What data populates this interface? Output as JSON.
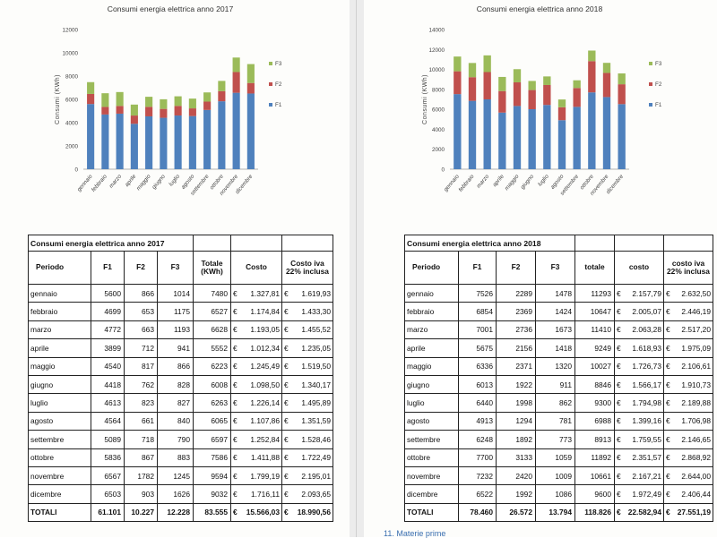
{
  "left": {
    "chart_data": {
      "type": "bar",
      "stacked": true,
      "title": "Consumi energia elettrica anno 2017",
      "ylabel": "Consumi (KWh)",
      "xlabel": "",
      "ylim": [
        0,
        12000
      ],
      "yticks": [
        0,
        2000,
        4000,
        6000,
        8000,
        10000,
        12000
      ],
      "categories": [
        "gennaio",
        "febbraio",
        "marzo",
        "aprile",
        "maggio",
        "giugno",
        "luglio",
        "agosto",
        "settembre",
        "ottobre",
        "novembre",
        "dicembre"
      ],
      "series": [
        {
          "name": "F1",
          "color": "#4f81bd",
          "values": [
            5600,
            4699,
            4772,
            3899,
            4540,
            4418,
            4613,
            4564,
            5089,
            5836,
            6567,
            6503
          ]
        },
        {
          "name": "F2",
          "color": "#c0504d",
          "values": [
            866,
            653,
            663,
            712,
            817,
            762,
            823,
            661,
            718,
            867,
            1782,
            903
          ]
        },
        {
          "name": "F3",
          "color": "#9bbb59",
          "values": [
            1014,
            1175,
            1193,
            941,
            866,
            828,
            827,
            840,
            790,
            883,
            1245,
            1626
          ]
        }
      ],
      "legend": "right",
      "grid": false
    },
    "table": {
      "title": "Consumi energia elettrica anno 2017",
      "headers": [
        "Periodo",
        "F1",
        "F2",
        "F3",
        "Totale (KWh)",
        "Costo",
        "Costo iva 22% inclusa"
      ],
      "currency": "€",
      "rows": [
        {
          "periodo": "gennaio",
          "f1": "5600",
          "f2": "866",
          "f3": "1014",
          "totale": "7480",
          "costo": "1.327,81",
          "iva": "1.619,93"
        },
        {
          "periodo": "febbraio",
          "f1": "4699",
          "f2": "653",
          "f3": "1175",
          "totale": "6527",
          "costo": "1.174,84",
          "iva": "1.433,30"
        },
        {
          "periodo": "marzo",
          "f1": "4772",
          "f2": "663",
          "f3": "1193",
          "totale": "6628",
          "costo": "1.193,05",
          "iva": "1.455,52"
        },
        {
          "periodo": "aprile",
          "f1": "3899",
          "f2": "712",
          "f3": "941",
          "totale": "5552",
          "costo": "1.012,34",
          "iva": "1.235,05"
        },
        {
          "periodo": "maggio",
          "f1": "4540",
          "f2": "817",
          "f3": "866",
          "totale": "6223",
          "costo": "1.245,49",
          "iva": "1.519,50"
        },
        {
          "periodo": "giugno",
          "f1": "4418",
          "f2": "762",
          "f3": "828",
          "totale": "6008",
          "costo": "1.098,50",
          "iva": "1.340,17"
        },
        {
          "periodo": "luglio",
          "f1": "4613",
          "f2": "823",
          "f3": "827",
          "totale": "6263",
          "costo": "1.226,14",
          "iva": "1.495,89"
        },
        {
          "periodo": "agosto",
          "f1": "4564",
          "f2": "661",
          "f3": "840",
          "totale": "6065",
          "costo": "1.107,86",
          "iva": "1.351,59"
        },
        {
          "periodo": "settembre",
          "f1": "5089",
          "f2": "718",
          "f3": "790",
          "totale": "6597",
          "costo": "1.252,84",
          "iva": "1.528,46"
        },
        {
          "periodo": "ottobre",
          "f1": "5836",
          "f2": "867",
          "f3": "883",
          "totale": "7586",
          "costo": "1.411,88",
          "iva": "1.722,49"
        },
        {
          "periodo": "novembre",
          "f1": "6567",
          "f2": "1782",
          "f3": "1245",
          "totale": "9594",
          "costo": "1.799,19",
          "iva": "2.195,01"
        },
        {
          "periodo": "dicembre",
          "f1": "6503",
          "f2": "903",
          "f3": "1626",
          "totale": "9032",
          "costo": "1.716,11",
          "iva": "2.093,65"
        }
      ],
      "total": {
        "label": "TOTALI",
        "f1": "61.101",
        "f2": "10.227",
        "f3": "12.228",
        "totale": "83.555",
        "costo": "15.566,03",
        "iva": "18.990,56"
      }
    }
  },
  "right": {
    "chart_data": {
      "type": "bar",
      "stacked": true,
      "title": "Consumi energia elettrica anno 2018",
      "ylabel": "Consumi (KWh)",
      "xlabel": "",
      "ylim": [
        0,
        14000
      ],
      "yticks": [
        0,
        2000,
        4000,
        6000,
        8000,
        10000,
        12000,
        14000
      ],
      "categories": [
        "gennaio",
        "febbraio",
        "marzo",
        "aprile",
        "maggio",
        "giugno",
        "luglio",
        "agosto",
        "settembre",
        "ottobre",
        "novembre",
        "dicembre"
      ],
      "series": [
        {
          "name": "F1",
          "color": "#4f81bd",
          "values": [
            7526,
            6854,
            7001,
            5675,
            6336,
            6013,
            6440,
            4913,
            6248,
            7700,
            7232,
            6522
          ]
        },
        {
          "name": "F2",
          "color": "#c0504d",
          "values": [
            2289,
            2369,
            2736,
            2156,
            2371,
            1922,
            1998,
            1294,
            1892,
            3133,
            2420,
            1992
          ]
        },
        {
          "name": "F3",
          "color": "#9bbb59",
          "values": [
            1478,
            1424,
            1673,
            1418,
            1320,
            911,
            862,
            781,
            773,
            1059,
            1009,
            1086
          ]
        }
      ],
      "legend": "right",
      "grid": false
    },
    "table": {
      "title": "Consumi energia elettrica anno 2018",
      "headers": [
        "Periodo",
        "F1",
        "F2",
        "F3",
        "totale",
        "costo",
        "costo iva 22% inclusa"
      ],
      "currency": "€",
      "rows": [
        {
          "periodo": "gennaio",
          "f1": "7526",
          "f2": "2289",
          "f3": "1478",
          "totale": "11293",
          "costo": "2.157,79",
          "iva": "2.632,50"
        },
        {
          "periodo": "febbraio",
          "f1": "6854",
          "f2": "2369",
          "f3": "1424",
          "totale": "10647",
          "costo": "2.005,07",
          "iva": "2.446,19"
        },
        {
          "periodo": "marzo",
          "f1": "7001",
          "f2": "2736",
          "f3": "1673",
          "totale": "11410",
          "costo": "2.063,28",
          "iva": "2.517,20"
        },
        {
          "periodo": "aprile",
          "f1": "5675",
          "f2": "2156",
          "f3": "1418",
          "totale": "9249",
          "costo": "1.618,93",
          "iva": "1.975,09"
        },
        {
          "periodo": "maggio",
          "f1": "6336",
          "f2": "2371",
          "f3": "1320",
          "totale": "10027",
          "costo": "1.726,73",
          "iva": "2.106,61"
        },
        {
          "periodo": "giugno",
          "f1": "6013",
          "f2": "1922",
          "f3": "911",
          "totale": "8846",
          "costo": "1.566,17",
          "iva": "1.910,73"
        },
        {
          "periodo": "luglio",
          "f1": "6440",
          "f2": "1998",
          "f3": "862",
          "totale": "9300",
          "costo": "1.794,98",
          "iva": "2.189,88"
        },
        {
          "periodo": "agosto",
          "f1": "4913",
          "f2": "1294",
          "f3": "781",
          "totale": "6988",
          "costo": "1.399,16",
          "iva": "1.706,98"
        },
        {
          "periodo": "settembre",
          "f1": "6248",
          "f2": "1892",
          "f3": "773",
          "totale": "8913",
          "costo": "1.759,55",
          "iva": "2.146,65"
        },
        {
          "periodo": "ottobre",
          "f1": "7700",
          "f2": "3133",
          "f3": "1059",
          "totale": "11892",
          "costo": "2.351,57",
          "iva": "2.868,92"
        },
        {
          "periodo": "novembre",
          "f1": "7232",
          "f2": "2420",
          "f3": "1009",
          "totale": "10661",
          "costo": "2.167,21",
          "iva": "2.644,00"
        },
        {
          "periodo": "dicembre",
          "f1": "6522",
          "f2": "1992",
          "f3": "1086",
          "totale": "9600",
          "costo": "1.972,49",
          "iva": "2.406,44"
        }
      ],
      "total": {
        "label": "TOTALI",
        "f1": "78.460",
        "f2": "26.572",
        "f3": "13.794",
        "totale": "118.826",
        "costo": "22.582,94",
        "iva": "27.551,19"
      }
    }
  },
  "footer": {
    "link_text": "11. Materie prime"
  }
}
